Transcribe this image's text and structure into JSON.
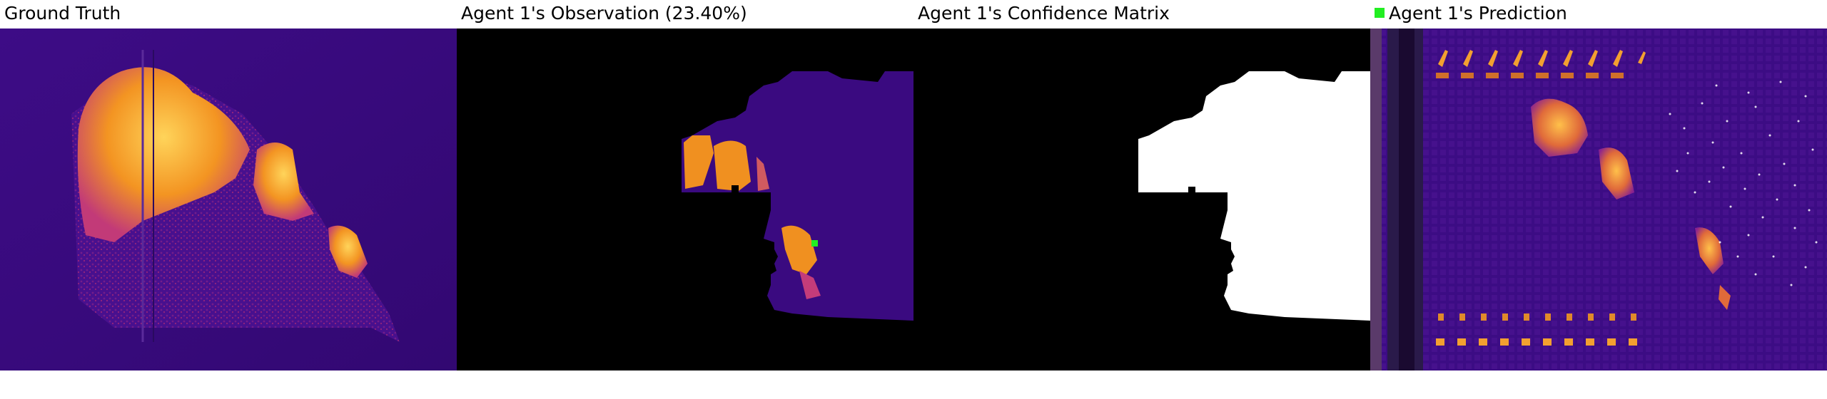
{
  "panels": {
    "ground_truth": {
      "title": "Ground Truth"
    },
    "observation": {
      "title": "Agent 1's Observation (23.40%)"
    },
    "confidence": {
      "title": "Agent 1's Confidence Matrix"
    },
    "prediction": {
      "title": "Agent 1's Prediction"
    }
  },
  "legend": {
    "marker_color": "#22ee22"
  },
  "colors": {
    "background_purple": "#3a0a7a",
    "hot_orange": "#f59a1a",
    "hot_yellow": "#ffc64a",
    "mid_magenta": "#b82a8a",
    "black": "#000000",
    "white": "#ffffff"
  }
}
